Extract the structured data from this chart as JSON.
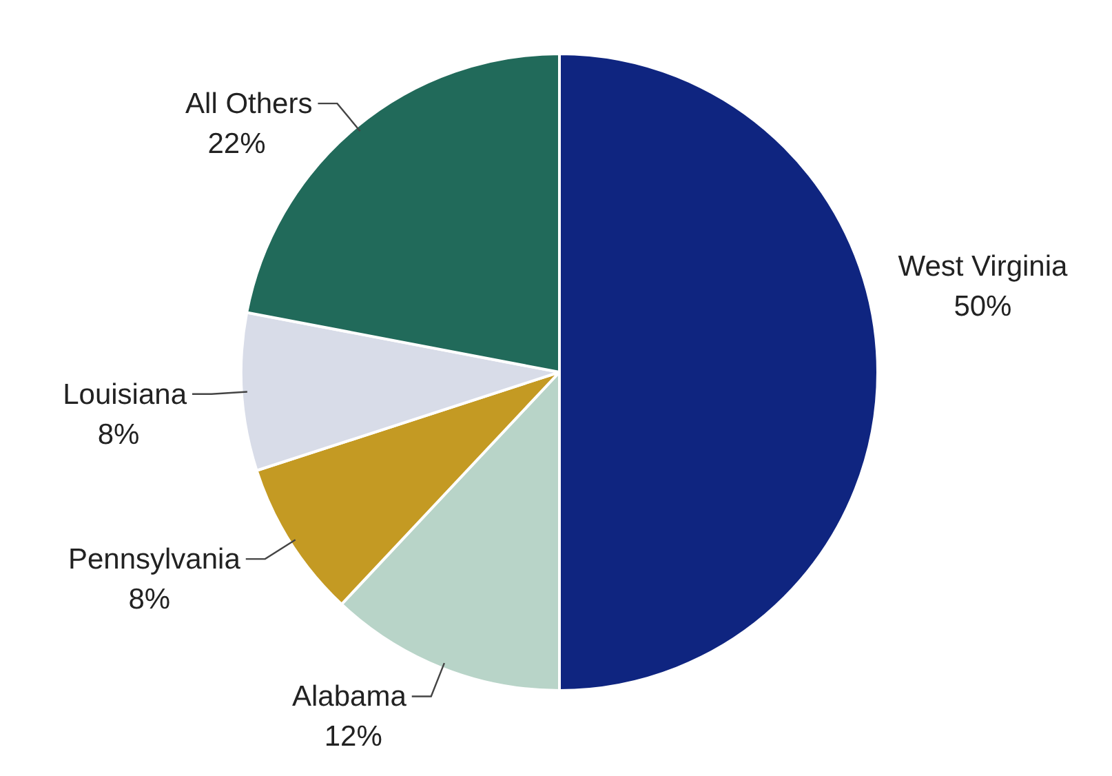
{
  "chart_data": {
    "type": "pie",
    "categories": [
      "West Virginia",
      "Alabama",
      "Pennsylvania",
      "Louisiana",
      "All Others"
    ],
    "values": [
      50,
      12,
      8,
      8,
      22
    ],
    "value_labels": [
      "50%",
      "12%",
      "8%",
      "8%",
      "22%"
    ],
    "colors": [
      "#0f2580",
      "#b8d4c8",
      "#c49a23",
      "#d8dce8",
      "#216a5a"
    ],
    "legend": false
  }
}
